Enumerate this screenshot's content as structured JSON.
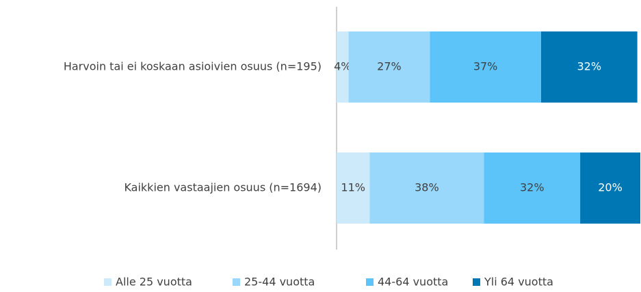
{
  "chart_data": {
    "type": "stacked-bar-horizontal",
    "categories": [
      "Harvoin tai ei koskaan asioivien osuus (n=195)",
      "Kaikkien vastaajien osuus (n=1694)"
    ],
    "series": [
      {
        "name": "Alle 25 vuotta",
        "color": "#cdeafb",
        "values": [
          4,
          11
        ],
        "value_labels": [
          "4%",
          "11%"
        ]
      },
      {
        "name": "25-44 vuotta",
        "color": "#9ad8fb",
        "values": [
          27,
          38
        ],
        "value_labels": [
          "27%",
          "38%"
        ]
      },
      {
        "name": "44-64 vuotta",
        "color": "#5cc4f8",
        "values": [
          37,
          32
        ],
        "value_labels": [
          "37%",
          "32%"
        ]
      },
      {
        "name": "Yli 64 vuotta",
        "color": "#0077b5",
        "values": [
          32,
          20
        ],
        "value_labels": [
          "32%",
          "20%"
        ]
      }
    ],
    "legend": "bottom"
  }
}
